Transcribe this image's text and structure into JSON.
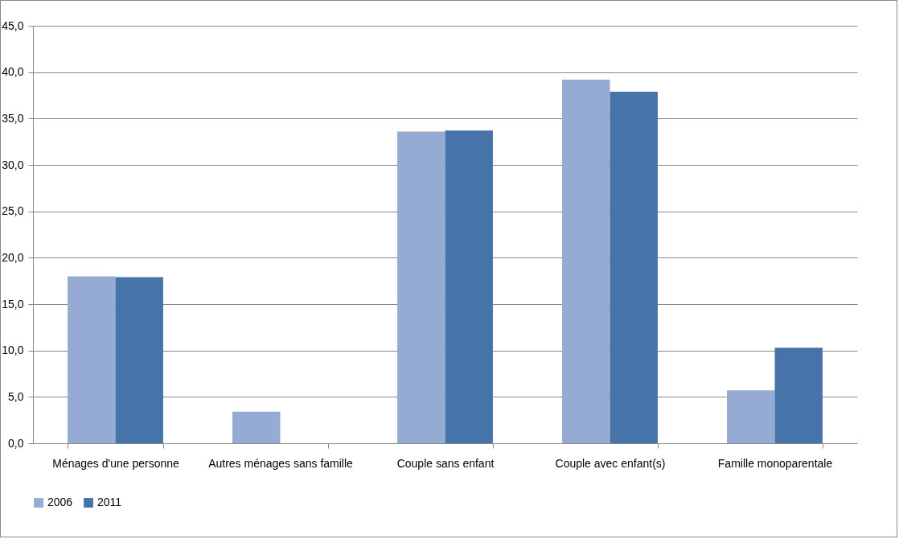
{
  "chart_data": {
    "type": "bar",
    "categories": [
      "Ménages d'une personne",
      "Autres ménages sans famille",
      "Couple sans enfant",
      "Couple avec enfant(s)",
      "Famille monoparentale"
    ],
    "series": [
      {
        "name": "2006",
        "color": "#95abd3",
        "values": [
          18.0,
          3.4,
          33.6,
          39.2,
          5.7
        ]
      },
      {
        "name": "2011",
        "color": "#4674a8",
        "values": [
          17.9,
          0,
          33.7,
          37.9,
          10.3
        ]
      }
    ],
    "ylim": [
      0,
      45
    ],
    "yticks": [
      {
        "value": 0,
        "label": "0,0"
      },
      {
        "value": 5,
        "label": "5,0"
      },
      {
        "value": 10,
        "label": "10,0"
      },
      {
        "value": 15,
        "label": "15,0"
      },
      {
        "value": 20,
        "label": "20,0"
      },
      {
        "value": 25,
        "label": "25,0"
      },
      {
        "value": 30,
        "label": "30,0"
      },
      {
        "value": 35,
        "label": "35,0"
      },
      {
        "value": 40,
        "label": "40,0"
      },
      {
        "value": 45,
        "label": "45,0"
      }
    ],
    "grid": "y",
    "legend": "bottom"
  }
}
